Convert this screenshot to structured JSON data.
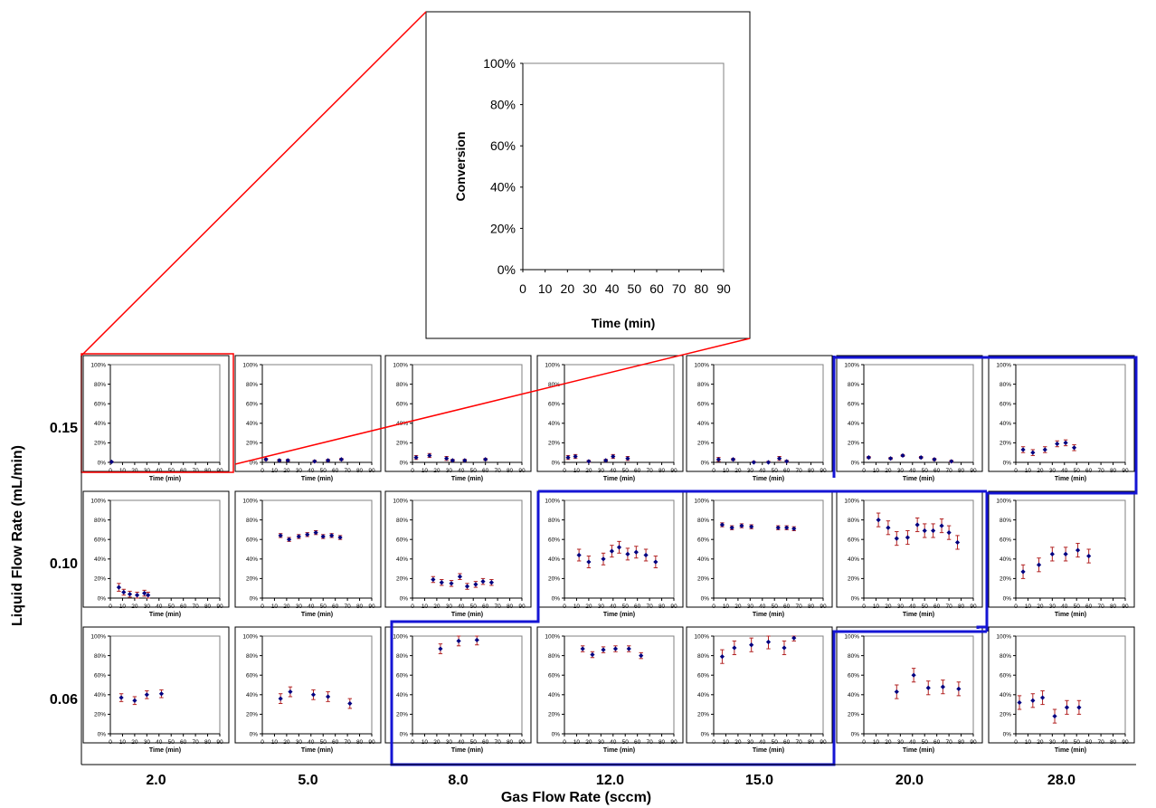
{
  "figure": {
    "y_label": "Liquid Flow Rate (mL/min)",
    "x_label": "Gas Flow Rate (sccm)",
    "row_labels": [
      "0.15",
      "0.10",
      "0.06"
    ],
    "col_labels": [
      "2.0",
      "5.0",
      "8.0",
      "12.0",
      "15.0",
      "20.0",
      "28.0"
    ],
    "colors": {
      "marker": "#000080",
      "error_bar": "#b22222",
      "zoom_box": "#ff0000",
      "highlight": "#1515d4"
    }
  },
  "chart_data": [
    {
      "type": "scatter",
      "role": "enlarged",
      "ylabel": "Conversion",
      "xlabel": "Time (min)",
      "xlim": [
        0,
        90
      ],
      "ylim": [
        0,
        100
      ],
      "xticks": [
        "0",
        "10",
        "20",
        "30",
        "40",
        "50",
        "60",
        "70",
        "80",
        "90"
      ],
      "yticks": [
        "0%",
        "20%",
        "40%",
        "60%",
        "80%",
        "100%"
      ],
      "series": [
        {
          "x": [],
          "y": [],
          "err": []
        }
      ]
    },
    {
      "type": "scatter",
      "row": "0.15",
      "col": "2.0",
      "xlabel": "Time (min)",
      "xlim": [
        0,
        90
      ],
      "ylim": [
        0,
        100
      ],
      "series": [
        {
          "x": [
            1
          ],
          "y": [
            0.5
          ],
          "err": [
            0.5
          ]
        }
      ]
    },
    {
      "type": "scatter",
      "row": "0.15",
      "col": "5.0",
      "xlabel": "Time (min)",
      "xlim": [
        0,
        90
      ],
      "ylim": [
        0,
        100
      ],
      "series": [
        {
          "x": [
            3,
            14,
            21,
            43,
            54,
            65
          ],
          "y": [
            3,
            2,
            2,
            1,
            2,
            3
          ],
          "err": [
            1,
            1,
            1,
            1,
            1,
            1
          ]
        }
      ]
    },
    {
      "type": "scatter",
      "row": "0.15",
      "col": "8.0",
      "xlabel": "Time (min)",
      "xlim": [
        0,
        90
      ],
      "ylim": [
        0,
        100
      ],
      "series": [
        {
          "x": [
            3,
            14,
            28,
            33,
            43,
            60
          ],
          "y": [
            5,
            7,
            4,
            2,
            2,
            3
          ],
          "err": [
            2,
            2,
            2,
            1,
            1,
            1
          ]
        }
      ]
    },
    {
      "type": "scatter",
      "row": "0.15",
      "col": "12.0",
      "xlabel": "Time (min)",
      "xlim": [
        0,
        90
      ],
      "ylim": [
        0,
        100
      ],
      "series": [
        {
          "x": [
            3,
            9,
            20,
            34,
            40,
            52
          ],
          "y": [
            5,
            6,
            1,
            2,
            6,
            4
          ],
          "err": [
            2,
            2,
            1,
            1,
            2,
            2
          ]
        }
      ]
    },
    {
      "type": "scatter",
      "row": "0.15",
      "col": "15.0",
      "xlabel": "Time (min)",
      "xlim": [
        0,
        90
      ],
      "ylim": [
        0,
        100
      ],
      "series": [
        {
          "x": [
            4,
            16,
            33,
            45,
            54,
            60
          ],
          "y": [
            3,
            3,
            0,
            0,
            4,
            1
          ],
          "err": [
            2,
            1,
            1,
            1,
            2,
            1
          ]
        }
      ]
    },
    {
      "type": "scatter",
      "row": "0.15",
      "col": "20.0",
      "xlabel": "Time (min)",
      "xlim": [
        0,
        90
      ],
      "ylim": [
        0,
        100
      ],
      "series": [
        {
          "x": [
            4,
            22,
            32,
            47,
            58,
            72
          ],
          "y": [
            5,
            4,
            7,
            5,
            3,
            1
          ],
          "err": [
            1,
            1,
            1,
            1,
            1,
            1
          ]
        }
      ]
    },
    {
      "type": "scatter",
      "row": "0.15",
      "col": "28.0",
      "xlabel": "Time (min)",
      "xlim": [
        0,
        90
      ],
      "ylim": [
        0,
        100
      ],
      "series": [
        {
          "x": [
            6,
            14,
            24,
            34,
            41,
            48
          ],
          "y": [
            13,
            10,
            13,
            19,
            20,
            15
          ],
          "err": [
            3,
            3,
            3,
            3,
            3,
            3
          ]
        }
      ]
    },
    {
      "type": "scatter",
      "row": "0.10",
      "col": "2.0",
      "xlabel": "Time (min)",
      "xlim": [
        0,
        90
      ],
      "ylim": [
        0,
        100
      ],
      "series": [
        {
          "x": [
            7,
            11,
            16,
            22,
            28,
            31
          ],
          "y": [
            11,
            6,
            4,
            3,
            5,
            3
          ],
          "err": [
            4,
            3,
            3,
            3,
            3,
            3
          ]
        }
      ]
    },
    {
      "type": "scatter",
      "row": "0.10",
      "col": "5.0",
      "xlabel": "Time (min)",
      "xlim": [
        0,
        90
      ],
      "ylim": [
        0,
        100
      ],
      "series": [
        {
          "x": [
            15,
            22,
            30,
            37,
            44,
            50,
            57,
            64
          ],
          "y": [
            64,
            60,
            63,
            65,
            67,
            63,
            64,
            62
          ],
          "err": [
            2,
            2,
            2,
            2,
            2,
            2,
            2,
            2
          ]
        }
      ]
    },
    {
      "type": "scatter",
      "row": "0.10",
      "col": "8.0",
      "xlabel": "Time (min)",
      "xlim": [
        0,
        90
      ],
      "ylim": [
        0,
        100
      ],
      "series": [
        {
          "x": [
            17,
            24,
            32,
            39,
            45,
            52,
            58,
            65
          ],
          "y": [
            19,
            16,
            15,
            22,
            12,
            14,
            17,
            16
          ],
          "err": [
            3,
            3,
            3,
            3,
            3,
            3,
            3,
            3
          ]
        }
      ]
    },
    {
      "type": "scatter",
      "row": "0.10",
      "col": "12.0",
      "xlabel": "Time (min)",
      "xlim": [
        0,
        90
      ],
      "ylim": [
        0,
        100
      ],
      "series": [
        {
          "x": [
            12,
            20,
            32,
            39,
            45,
            52,
            59,
            67,
            75
          ],
          "y": [
            44,
            37,
            40,
            48,
            52,
            45,
            47,
            44,
            37
          ],
          "err": [
            6,
            6,
            6,
            6,
            6,
            6,
            6,
            6,
            6
          ]
        }
      ]
    },
    {
      "type": "scatter",
      "row": "0.10",
      "col": "15.0",
      "xlabel": "Time (min)",
      "xlim": [
        0,
        90
      ],
      "ylim": [
        0,
        100
      ],
      "series": [
        {
          "x": [
            7,
            15,
            23,
            31,
            53,
            60,
            66
          ],
          "y": [
            75,
            72,
            74,
            73,
            72,
            72,
            71
          ],
          "err": [
            2,
            2,
            2,
            2,
            2,
            2,
            2
          ]
        }
      ]
    },
    {
      "type": "scatter",
      "row": "0.10",
      "col": "20.0",
      "xlabel": "Time (min)",
      "xlim": [
        0,
        90
      ],
      "ylim": [
        0,
        100
      ],
      "series": [
        {
          "x": [
            12,
            20,
            27,
            36,
            44,
            50,
            57,
            64,
            70,
            77
          ],
          "y": [
            80,
            72,
            61,
            62,
            75,
            69,
            69,
            74,
            67,
            57
          ],
          "err": [
            7,
            7,
            7,
            7,
            7,
            7,
            7,
            7,
            7,
            7
          ]
        }
      ]
    },
    {
      "type": "scatter",
      "row": "0.10",
      "col": "28.0",
      "xlabel": "Time (min)",
      "xlim": [
        0,
        90
      ],
      "ylim": [
        0,
        100
      ],
      "series": [
        {
          "x": [
            6,
            19,
            30,
            41,
            51,
            60
          ],
          "y": [
            27,
            34,
            45,
            45,
            49,
            43
          ],
          "err": [
            7,
            7,
            7,
            7,
            7,
            7
          ]
        }
      ]
    },
    {
      "type": "scatter",
      "row": "0.06",
      "col": "2.0",
      "xlabel": "Time (min)",
      "xlim": [
        0,
        90
      ],
      "ylim": [
        0,
        100
      ],
      "series": [
        {
          "x": [
            9,
            20,
            30,
            42
          ],
          "y": [
            37,
            34,
            40,
            41
          ],
          "err": [
            4,
            4,
            4,
            4
          ]
        }
      ]
    },
    {
      "type": "scatter",
      "row": "0.06",
      "col": "5.0",
      "xlabel": "Time (min)",
      "xlim": [
        0,
        90
      ],
      "ylim": [
        0,
        100
      ],
      "series": [
        {
          "x": [
            15,
            23,
            42,
            54,
            72
          ],
          "y": [
            36,
            43,
            40,
            38,
            31
          ],
          "err": [
            5,
            5,
            5,
            5,
            5
          ]
        }
      ]
    },
    {
      "type": "scatter",
      "row": "0.06",
      "col": "8.0",
      "xlabel": "Time (min)",
      "xlim": [
        0,
        90
      ],
      "ylim": [
        0,
        100
      ],
      "series": [
        {
          "x": [
            23,
            38,
            53
          ],
          "y": [
            87,
            95,
            96
          ],
          "err": [
            5,
            5,
            5
          ]
        }
      ]
    },
    {
      "type": "scatter",
      "row": "0.06",
      "col": "12.0",
      "xlabel": "Time (min)",
      "xlim": [
        0,
        90
      ],
      "ylim": [
        0,
        100
      ],
      "series": [
        {
          "x": [
            15,
            23,
            32,
            42,
            53,
            63
          ],
          "y": [
            87,
            81,
            86,
            87,
            87,
            80
          ],
          "err": [
            3,
            3,
            3,
            3,
            3,
            3
          ]
        }
      ]
    },
    {
      "type": "scatter",
      "row": "0.06",
      "col": "15.0",
      "xlabel": "Time (min)",
      "xlim": [
        0,
        90
      ],
      "ylim": [
        0,
        100
      ],
      "series": [
        {
          "x": [
            7,
            17,
            31,
            45,
            58,
            66
          ],
          "y": [
            79,
            88,
            91,
            94,
            88,
            98
          ],
          "err": [
            7,
            7,
            7,
            7,
            7,
            3
          ]
        }
      ]
    },
    {
      "type": "scatter",
      "row": "0.06",
      "col": "20.0",
      "xlabel": "Time (min)",
      "xlim": [
        0,
        90
      ],
      "ylim": [
        0,
        100
      ],
      "series": [
        {
          "x": [
            27,
            41,
            53,
            65,
            78
          ],
          "y": [
            43,
            60,
            47,
            48,
            46
          ],
          "err": [
            7,
            7,
            7,
            7,
            7
          ]
        }
      ]
    },
    {
      "type": "scatter",
      "row": "0.06",
      "col": "28.0",
      "xlabel": "Time (min)",
      "xlim": [
        0,
        90
      ],
      "ylim": [
        0,
        100
      ],
      "series": [
        {
          "x": [
            3,
            14,
            22,
            32,
            42,
            52
          ],
          "y": [
            32,
            34,
            37,
            18,
            27,
            27
          ],
          "err": [
            7,
            7,
            7,
            7,
            7,
            7
          ]
        }
      ]
    }
  ]
}
